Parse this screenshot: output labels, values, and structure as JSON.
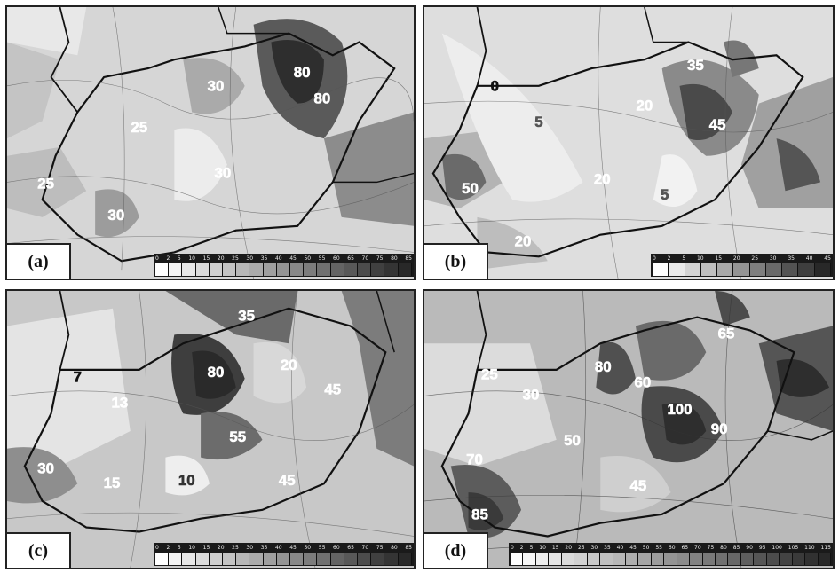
{
  "panels": [
    {
      "letter": "(a)",
      "scale_ticks": [
        "0",
        "2",
        "5",
        "10",
        "15",
        "20",
        "25",
        "30",
        "35",
        "40",
        "45",
        "50",
        "55",
        "60",
        "65",
        "70",
        "75",
        "80",
        "85"
      ],
      "labels": [
        "80",
        "80",
        "30",
        "25",
        "25",
        "30",
        "30"
      ]
    },
    {
      "letter": "(b)",
      "scale_ticks": [
        "0",
        "2",
        "5",
        "10",
        "15",
        "20",
        "25",
        "30",
        "35",
        "40",
        "45"
      ],
      "labels": [
        "35",
        "0",
        "20",
        "45",
        "5",
        "50",
        "20",
        "5",
        "20"
      ]
    },
    {
      "letter": "(c)",
      "scale_ticks": [
        "0",
        "2",
        "5",
        "10",
        "15",
        "20",
        "25",
        "30",
        "35",
        "40",
        "45",
        "50",
        "55",
        "60",
        "65",
        "70",
        "75",
        "80",
        "85"
      ],
      "labels": [
        "35",
        "80",
        "20",
        "7",
        "45",
        "13",
        "55",
        "30",
        "15",
        "10",
        "45"
      ]
    },
    {
      "letter": "(d)",
      "scale_ticks": [
        "0",
        "2",
        "5",
        "10",
        "15",
        "20",
        "25",
        "30",
        "35",
        "40",
        "45",
        "50",
        "55",
        "60",
        "65",
        "70",
        "75",
        "80",
        "85",
        "90",
        "95",
        "100",
        "105",
        "110",
        "115"
      ],
      "labels": [
        "65",
        "80",
        "25",
        "60",
        "30",
        "100",
        "90",
        "50",
        "70",
        "45",
        "85"
      ]
    }
  ],
  "colors": {
    "light": "#e6e6e6",
    "mid": "#a8a8a8",
    "dark": "#4a4a4a",
    "border": "#111111"
  }
}
